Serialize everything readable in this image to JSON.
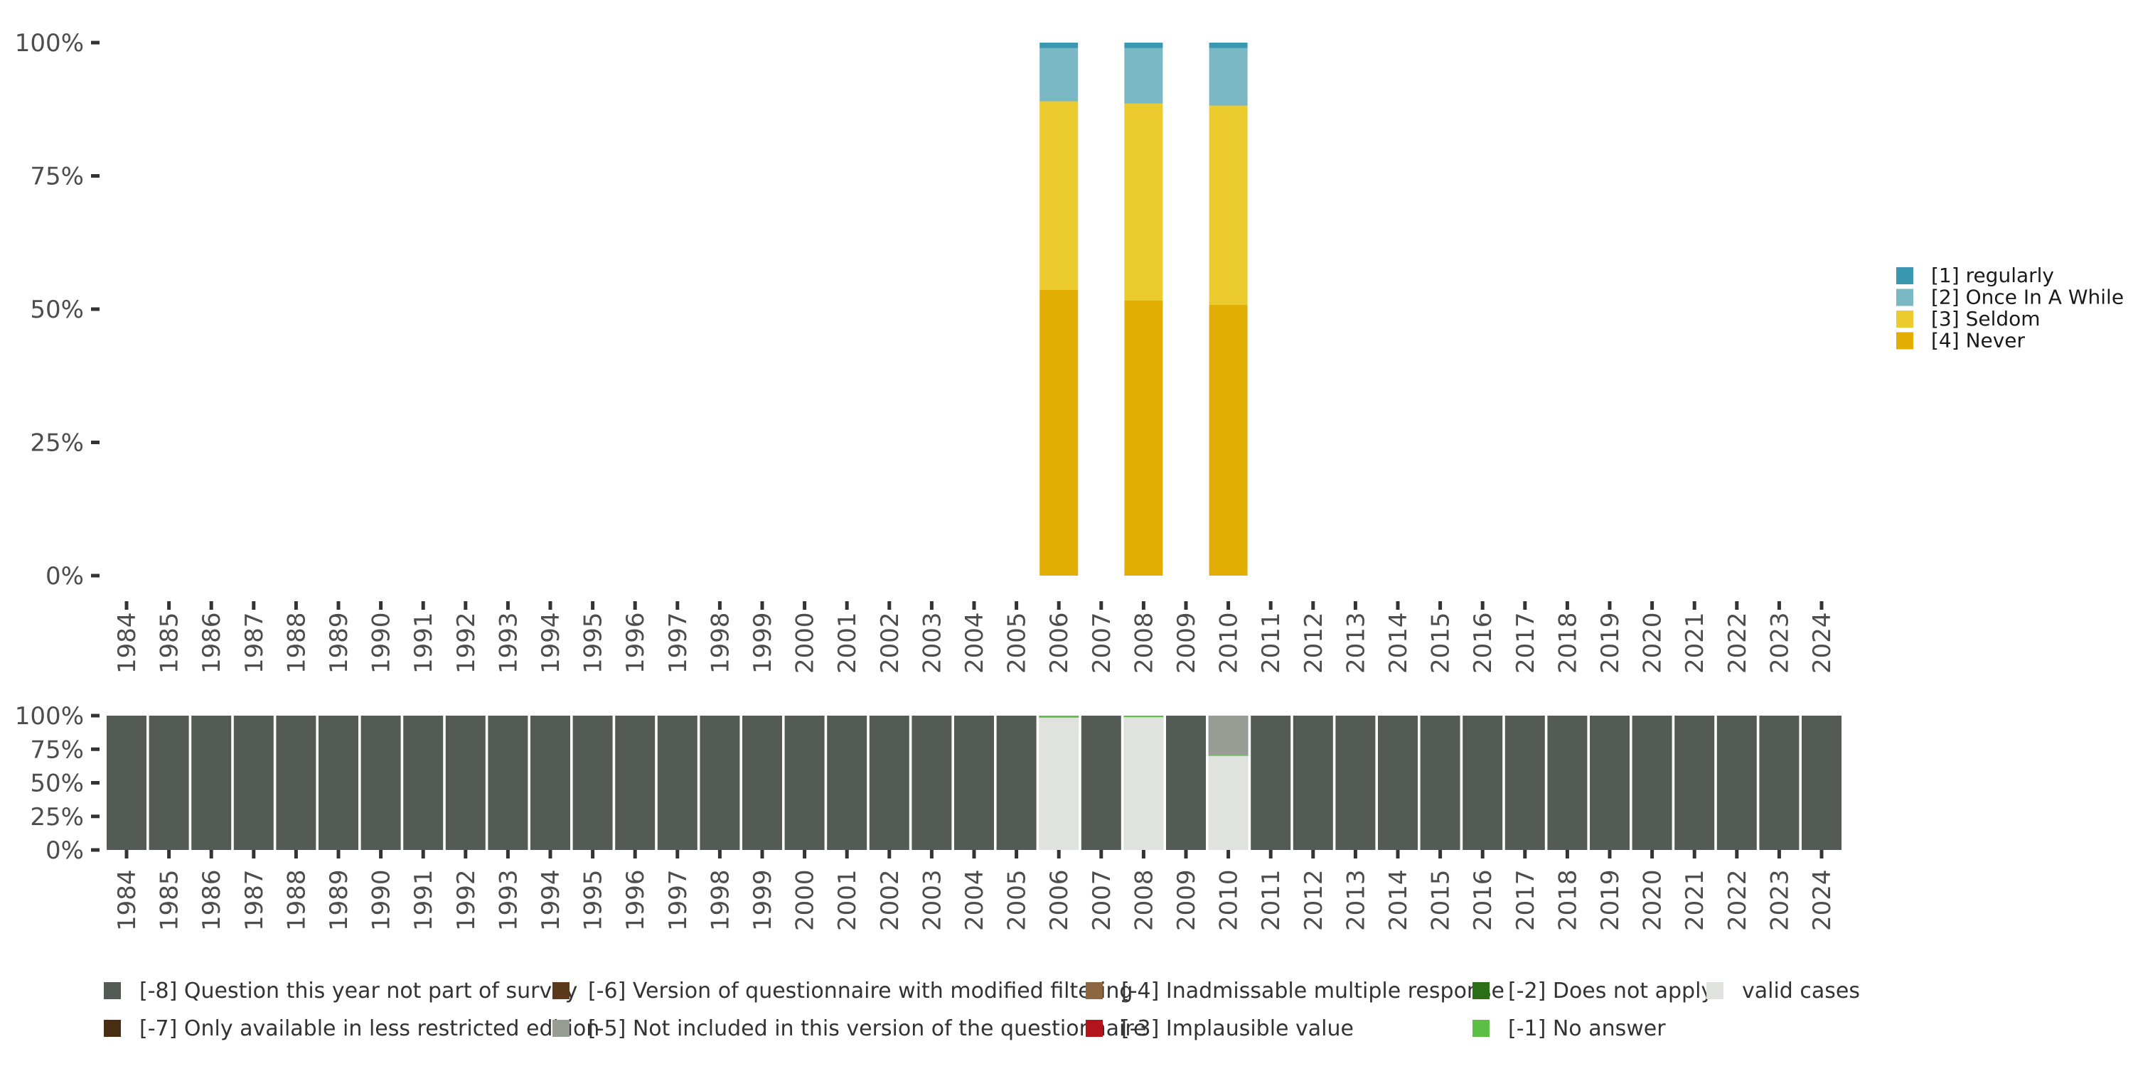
{
  "chart_data": [
    {
      "type": "bar",
      "stacked": true,
      "name": "main-distribution",
      "categories": [
        "1984",
        "1985",
        "1986",
        "1987",
        "1988",
        "1989",
        "1990",
        "1991",
        "1992",
        "1993",
        "1994",
        "1995",
        "1996",
        "1997",
        "1998",
        "1999",
        "2000",
        "2001",
        "2002",
        "2003",
        "2004",
        "2005",
        "2006",
        "2007",
        "2008",
        "2009",
        "2010",
        "2011",
        "2012",
        "2013",
        "2014",
        "2015",
        "2016",
        "2017",
        "2018",
        "2019",
        "2020",
        "2021",
        "2022",
        "2023",
        "2024"
      ],
      "ylim": [
        0,
        100
      ],
      "yticks": [
        "0%",
        "25%",
        "50%",
        "75%",
        "100%"
      ],
      "legend_position": "right",
      "series": [
        {
          "name": "[4] Never",
          "color": "#E2AE04",
          "values": {
            "2006": 53.6,
            "2008": 51.6,
            "2010": 50.8
          }
        },
        {
          "name": "[3] Seldom",
          "color": "#EBCB2E",
          "values": {
            "2006": 35.4,
            "2008": 37.0,
            "2010": 37.4
          }
        },
        {
          "name": "[2] Once In A While",
          "color": "#7AB8C6",
          "values": {
            "2006": 10.0,
            "2008": 10.4,
            "2010": 10.8
          }
        },
        {
          "name": "[1] regularly",
          "color": "#3A98B0",
          "values": {
            "2006": 1.0,
            "2008": 1.0,
            "2010": 1.0
          }
        }
      ],
      "legend_order": [
        "[1] regularly",
        "[2] Once In A While",
        "[3] Seldom",
        "[4] Never"
      ]
    },
    {
      "type": "bar",
      "stacked": true,
      "name": "missing-structure",
      "categories": [
        "1984",
        "1985",
        "1986",
        "1987",
        "1988",
        "1989",
        "1990",
        "1991",
        "1992",
        "1993",
        "1994",
        "1995",
        "1996",
        "1997",
        "1998",
        "1999",
        "2000",
        "2001",
        "2002",
        "2003",
        "2004",
        "2005",
        "2006",
        "2007",
        "2008",
        "2009",
        "2010",
        "2011",
        "2012",
        "2013",
        "2014",
        "2015",
        "2016",
        "2017",
        "2018",
        "2019",
        "2020",
        "2021",
        "2022",
        "2023",
        "2024"
      ],
      "ylim": [
        0,
        100
      ],
      "yticks": [
        "0%",
        "25%",
        "50%",
        "75%",
        "100%"
      ],
      "legend_position": "bottom",
      "series": [
        {
          "name": "valid cases",
          "color": "#DFE2DD",
          "default": 0,
          "values": {
            "2006": 98.5,
            "2008": 98.8,
            "2010": 70.0
          }
        },
        {
          "name": "[-1] No answer",
          "color": "#5CBE45",
          "default": 0,
          "values": {
            "2006": 1.5,
            "2008": 1.2,
            "2010": 0.7
          }
        },
        {
          "name": "[-5] Not included in this version of the questionnaire",
          "color": "#979C94",
          "default": 0,
          "values": {
            "2010": 29.3
          }
        },
        {
          "name": "[-8] Question this year not part of survey",
          "color": "#545B55",
          "default": 100,
          "values": {
            "2006": 0,
            "2008": 0,
            "2010": 0
          }
        }
      ],
      "legend_items": [
        {
          "label": "[-8] Question this year not part of survey",
          "color": "#545B55"
        },
        {
          "label": "[-7] Only available in less restricted edition",
          "color": "#4A2E14"
        },
        {
          "label": "[-6] Version of questionnaire with modified filtering",
          "color": "#5A3A1A"
        },
        {
          "label": "[-5] Not included in this version of the questionnaire",
          "color": "#979C94"
        },
        {
          "label": "[-4] Inadmissable multiple response",
          "color": "#8B6640"
        },
        {
          "label": "[-3] Implausible value",
          "color": "#B3141C"
        },
        {
          "label": "[-2] Does not apply",
          "color": "#2A6E18"
        },
        {
          "label": "[-1] No answer",
          "color": "#5CBE45"
        },
        {
          "label": "valid cases",
          "color": "#DFE2DD"
        }
      ]
    }
  ]
}
